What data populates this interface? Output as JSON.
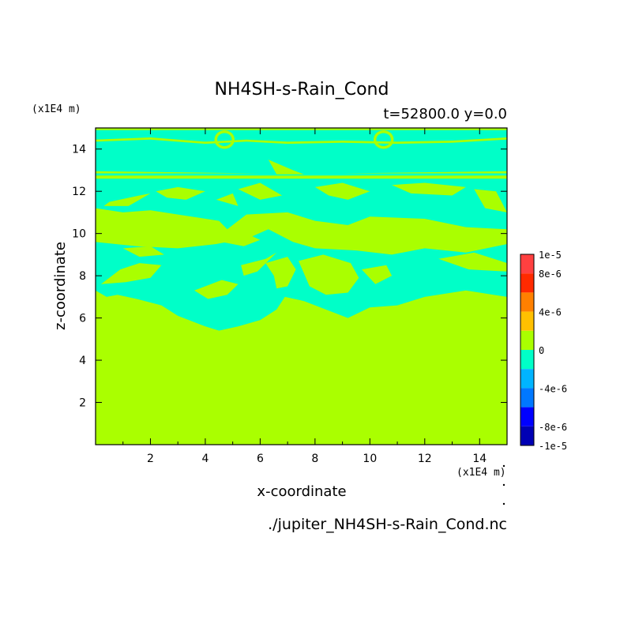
{
  "chart_data": {
    "type": "heatmap",
    "title": "NH4SH-s-Rain_Cond",
    "subtitle": "t=52800.0 y=0.0",
    "xlabel": "x-coordinate",
    "ylabel": "z-coordinate",
    "x_unit": "(x1E4 m)",
    "y_unit": "(x1E4 m)",
    "footer": "./jupiter_NH4SH-s-Rain_Cond.nc",
    "xlim": [
      0.0,
      15.0
    ],
    "ylim": [
      0.0,
      15.0
    ],
    "x_ticks": [
      2,
      4,
      6,
      8,
      10,
      12,
      14
    ],
    "y_ticks": [
      2,
      4,
      6,
      8,
      10,
      12,
      14
    ],
    "x_tick_labels": [
      "2",
      "4",
      "6",
      "8",
      "10",
      "12",
      "14"
    ],
    "y_tick_labels": [
      "2",
      "4",
      "6",
      "8",
      "10",
      "12",
      "14"
    ],
    "colorbar": {
      "tick_labels": [
        "1e-5",
        "8e-6",
        "4e-6",
        "0",
        "-4e-6",
        "-8e-6",
        "-1e-5"
      ],
      "tick_values": [
        1e-05,
        8e-06,
        4e-06,
        0,
        -4e-06,
        -8e-06,
        -1e-05
      ],
      "levels": [
        {
          "range": [
            8e-06,
            1e-05
          ],
          "color": "#ff4040"
        },
        {
          "range": [
            6e-06,
            8e-06
          ],
          "color": "#ff2a00"
        },
        {
          "range": [
            4e-06,
            6e-06
          ],
          "color": "#ff8000"
        },
        {
          "range": [
            2e-06,
            4e-06
          ],
          "color": "#ffc000"
        },
        {
          "range": [
            0,
            2e-06
          ],
          "color": "#aaff00"
        },
        {
          "range": [
            -2e-06,
            0
          ],
          "color": "#00ffc8"
        },
        {
          "range": [
            -4e-06,
            -2e-06
          ],
          "color": "#00b4ff"
        },
        {
          "range": [
            -6e-06,
            -4e-06
          ],
          "color": "#0078ff"
        },
        {
          "range": [
            -8e-06,
            -6e-06
          ],
          "color": "#0000ff"
        },
        {
          "range": [
            -1e-05,
            -8e-06
          ],
          "color": "#0000b4"
        }
      ]
    },
    "background_level_color": "#aaff00",
    "negative_region_color": "#00ffc8",
    "regions_description": [
      {
        "value_level": "slightly negative (-2e-6 to 0)",
        "z_range": [
          12.7,
          14.9
        ],
        "x_range": [
          0,
          15
        ],
        "note": "upper layer with thin positive streaks near z=14.2 and z=14.6"
      },
      {
        "value_level": "slightly negative (-2e-6 to 0)",
        "z_range": [
          10.5,
          12.5
        ],
        "x_range": [
          0,
          15
        ],
        "note": "mixed layer with patches"
      },
      {
        "value_level": "slightly negative (-2e-6 to 0)",
        "z_range": [
          5.3,
          9.5
        ],
        "x_range": [
          0,
          15
        ],
        "note": "broken lower layer"
      },
      {
        "value_level": "near zero positive (0 to 2e-6)",
        "z_range": [
          0,
          5.3
        ],
        "x_range": [
          0,
          15
        ],
        "note": "uniform"
      }
    ]
  }
}
